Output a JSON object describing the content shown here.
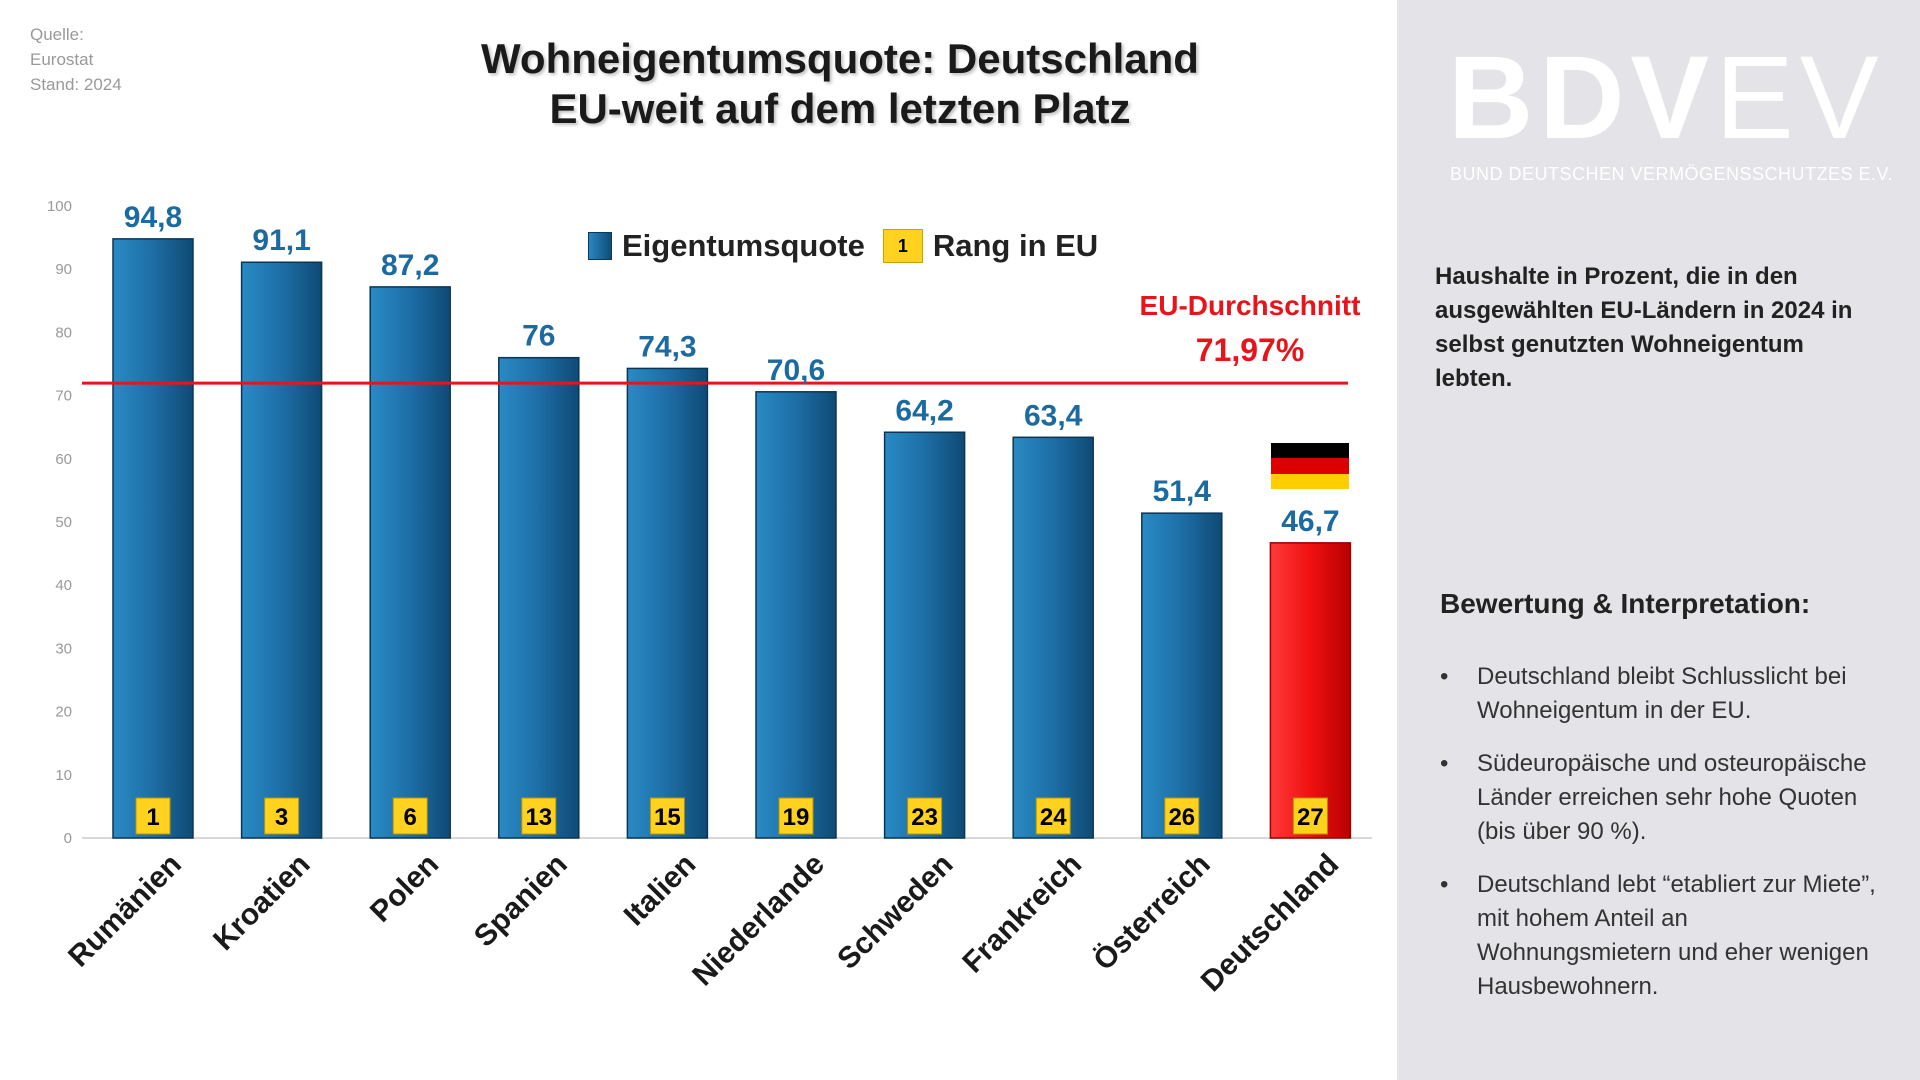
{
  "source": {
    "line1": "Quelle:",
    "line2": "Eurostat",
    "line3": "Stand: 2024"
  },
  "title": {
    "line1": "Wohneigentumsquote: Deutschland",
    "line2": "EU-weit auf dem letzten Platz"
  },
  "legend": {
    "series_label": "Eigentumsquote",
    "rank_badge": "1",
    "rank_label": "Rang in EU"
  },
  "eu_average": {
    "label": "EU-Durchschnitt",
    "value_text": "71,97%",
    "value": 71.97
  },
  "brand": {
    "bdv": "BDV",
    "ev": "EV",
    "tagline": "BUND DEUTSCHEN VERMÖGENSSCHUTZES E.V."
  },
  "description": "Haushalte in Prozent, die in den ausgewählten EU-Ländern in 2024 in selbst genutzten Wohneigentum lebten.",
  "evaluation": {
    "title": "Bewertung & Interpretation:",
    "bullets": [
      "Deutschland bleibt Schlusslicht bei Wohneigentum in der EU.",
      "Südeuropäische und osteuropäische Länder erreichen sehr hohe Quoten (bis über 90 %).",
      "Deutschland lebt “etabliert zur Miete”, mit hohem Anteil an Wohnungsmietern und eher wenigen Hausbewohnern."
    ]
  },
  "colors": {
    "bar": "#1f6fa5",
    "highlight": "#e8141c",
    "rank": "#ffd21f",
    "value_label": "#1c6aa0",
    "eu_line": "#e8141c"
  },
  "chart_data": {
    "type": "bar",
    "title": "Wohneigentumsquote: Deutschland EU-weit auf dem letzten Platz",
    "categories": [
      "Rumänien",
      "Kroatien",
      "Polen",
      "Spanien",
      "Italien",
      "Niederlande",
      "Schweden",
      "Frankreich",
      "Österreich",
      "Deutschland"
    ],
    "series": [
      {
        "name": "Eigentumsquote",
        "values": [
          94.8,
          91.1,
          87.2,
          76,
          74.3,
          70.6,
          64.2,
          63.4,
          51.4,
          46.7
        ]
      }
    ],
    "value_labels": [
      "94,8",
      "91,1",
      "87,2",
      "76",
      "74,3",
      "70,6",
      "64,2",
      "63,4",
      "51,4",
      "46,7"
    ],
    "ranks": [
      "1",
      "3",
      "6",
      "13",
      "15",
      "19",
      "23",
      "24",
      "26",
      "27"
    ],
    "highlight_index": 9,
    "reference_line": {
      "name": "EU-Durchschnitt",
      "value": 71.97
    },
    "ylim": [
      0,
      100
    ],
    "yticks": [
      0,
      10,
      20,
      30,
      40,
      50,
      60,
      70,
      80,
      90,
      100
    ],
    "xlabel": "",
    "ylabel": "",
    "legend": [
      "Eigentumsquote",
      "Rang in EU"
    ]
  }
}
